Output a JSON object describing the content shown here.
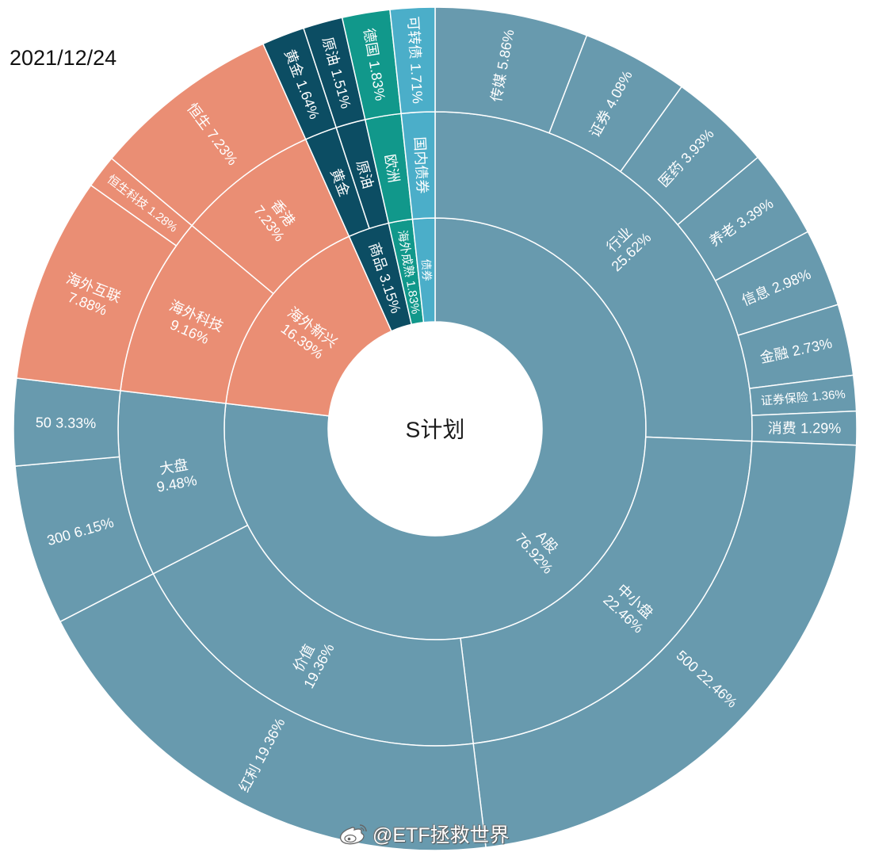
{
  "date": "2021/12/24",
  "watermark": "@ETF拯救世界",
  "watermark_icon": "weibo-logo-icon",
  "chart_data": {
    "type": "pie",
    "variant": "sunburst",
    "center_label": "S计划",
    "unit": "%",
    "nodes": [
      {
        "name": "A股",
        "value": 76.92,
        "color": "#689aae",
        "children": [
          {
            "name": "行业",
            "value": 25.62,
            "children": [
              {
                "name": "传媒",
                "value": 5.86
              },
              {
                "name": "证券",
                "value": 4.08
              },
              {
                "name": "医药",
                "value": 3.93
              },
              {
                "name": "养老",
                "value": 3.39
              },
              {
                "name": "信息",
                "value": 2.98
              },
              {
                "name": "金融",
                "value": 2.73
              },
              {
                "name": "证券保险",
                "value": 1.36
              },
              {
                "name": "消费",
                "value": 1.29
              }
            ]
          },
          {
            "name": "中小盘",
            "value": 22.46,
            "children": [
              {
                "name": "500",
                "value": 22.46
              }
            ]
          },
          {
            "name": "价值",
            "value": 19.36,
            "children": [
              {
                "name": "红利",
                "value": 19.36
              }
            ]
          },
          {
            "name": "大盘",
            "value": 9.48,
            "children": [
              {
                "name": "300",
                "value": 6.15
              },
              {
                "name": "50",
                "value": 3.33
              }
            ]
          }
        ]
      },
      {
        "name": "海外新兴",
        "value": 16.39,
        "color": "#ea8e74",
        "children": [
          {
            "name": "海外科技",
            "value": 9.16,
            "children": [
              {
                "name": "海外互联",
                "value": 7.88
              },
              {
                "name": "恒生科技",
                "value": 1.28
              }
            ]
          },
          {
            "name": "香港",
            "value": 7.23,
            "children": [
              {
                "name": "恒生",
                "value": 7.23
              }
            ]
          }
        ]
      },
      {
        "name": "商品",
        "value": 3.15,
        "color": "#0c4d63",
        "children": [
          {
            "name": "黄金",
            "value": 1.64,
            "children": [
              {
                "name": "黄金",
                "value": 1.64
              }
            ]
          },
          {
            "name": "原油",
            "value": 1.51,
            "children": [
              {
                "name": "原油",
                "value": 1.51
              }
            ]
          }
        ]
      },
      {
        "name": "海外成熟",
        "value": 1.83,
        "color": "#11988b",
        "children": [
          {
            "name": "欧洲",
            "value": 1.83,
            "children": [
              {
                "name": "德国",
                "value": 1.83
              }
            ]
          }
        ]
      },
      {
        "name": "债券",
        "value": 1.71,
        "color": "#4baec9",
        "children": [
          {
            "name": "国内债券",
            "value": 1.71,
            "children": [
              {
                "name": "可转债",
                "value": 1.71
              }
            ]
          }
        ]
      }
    ]
  }
}
